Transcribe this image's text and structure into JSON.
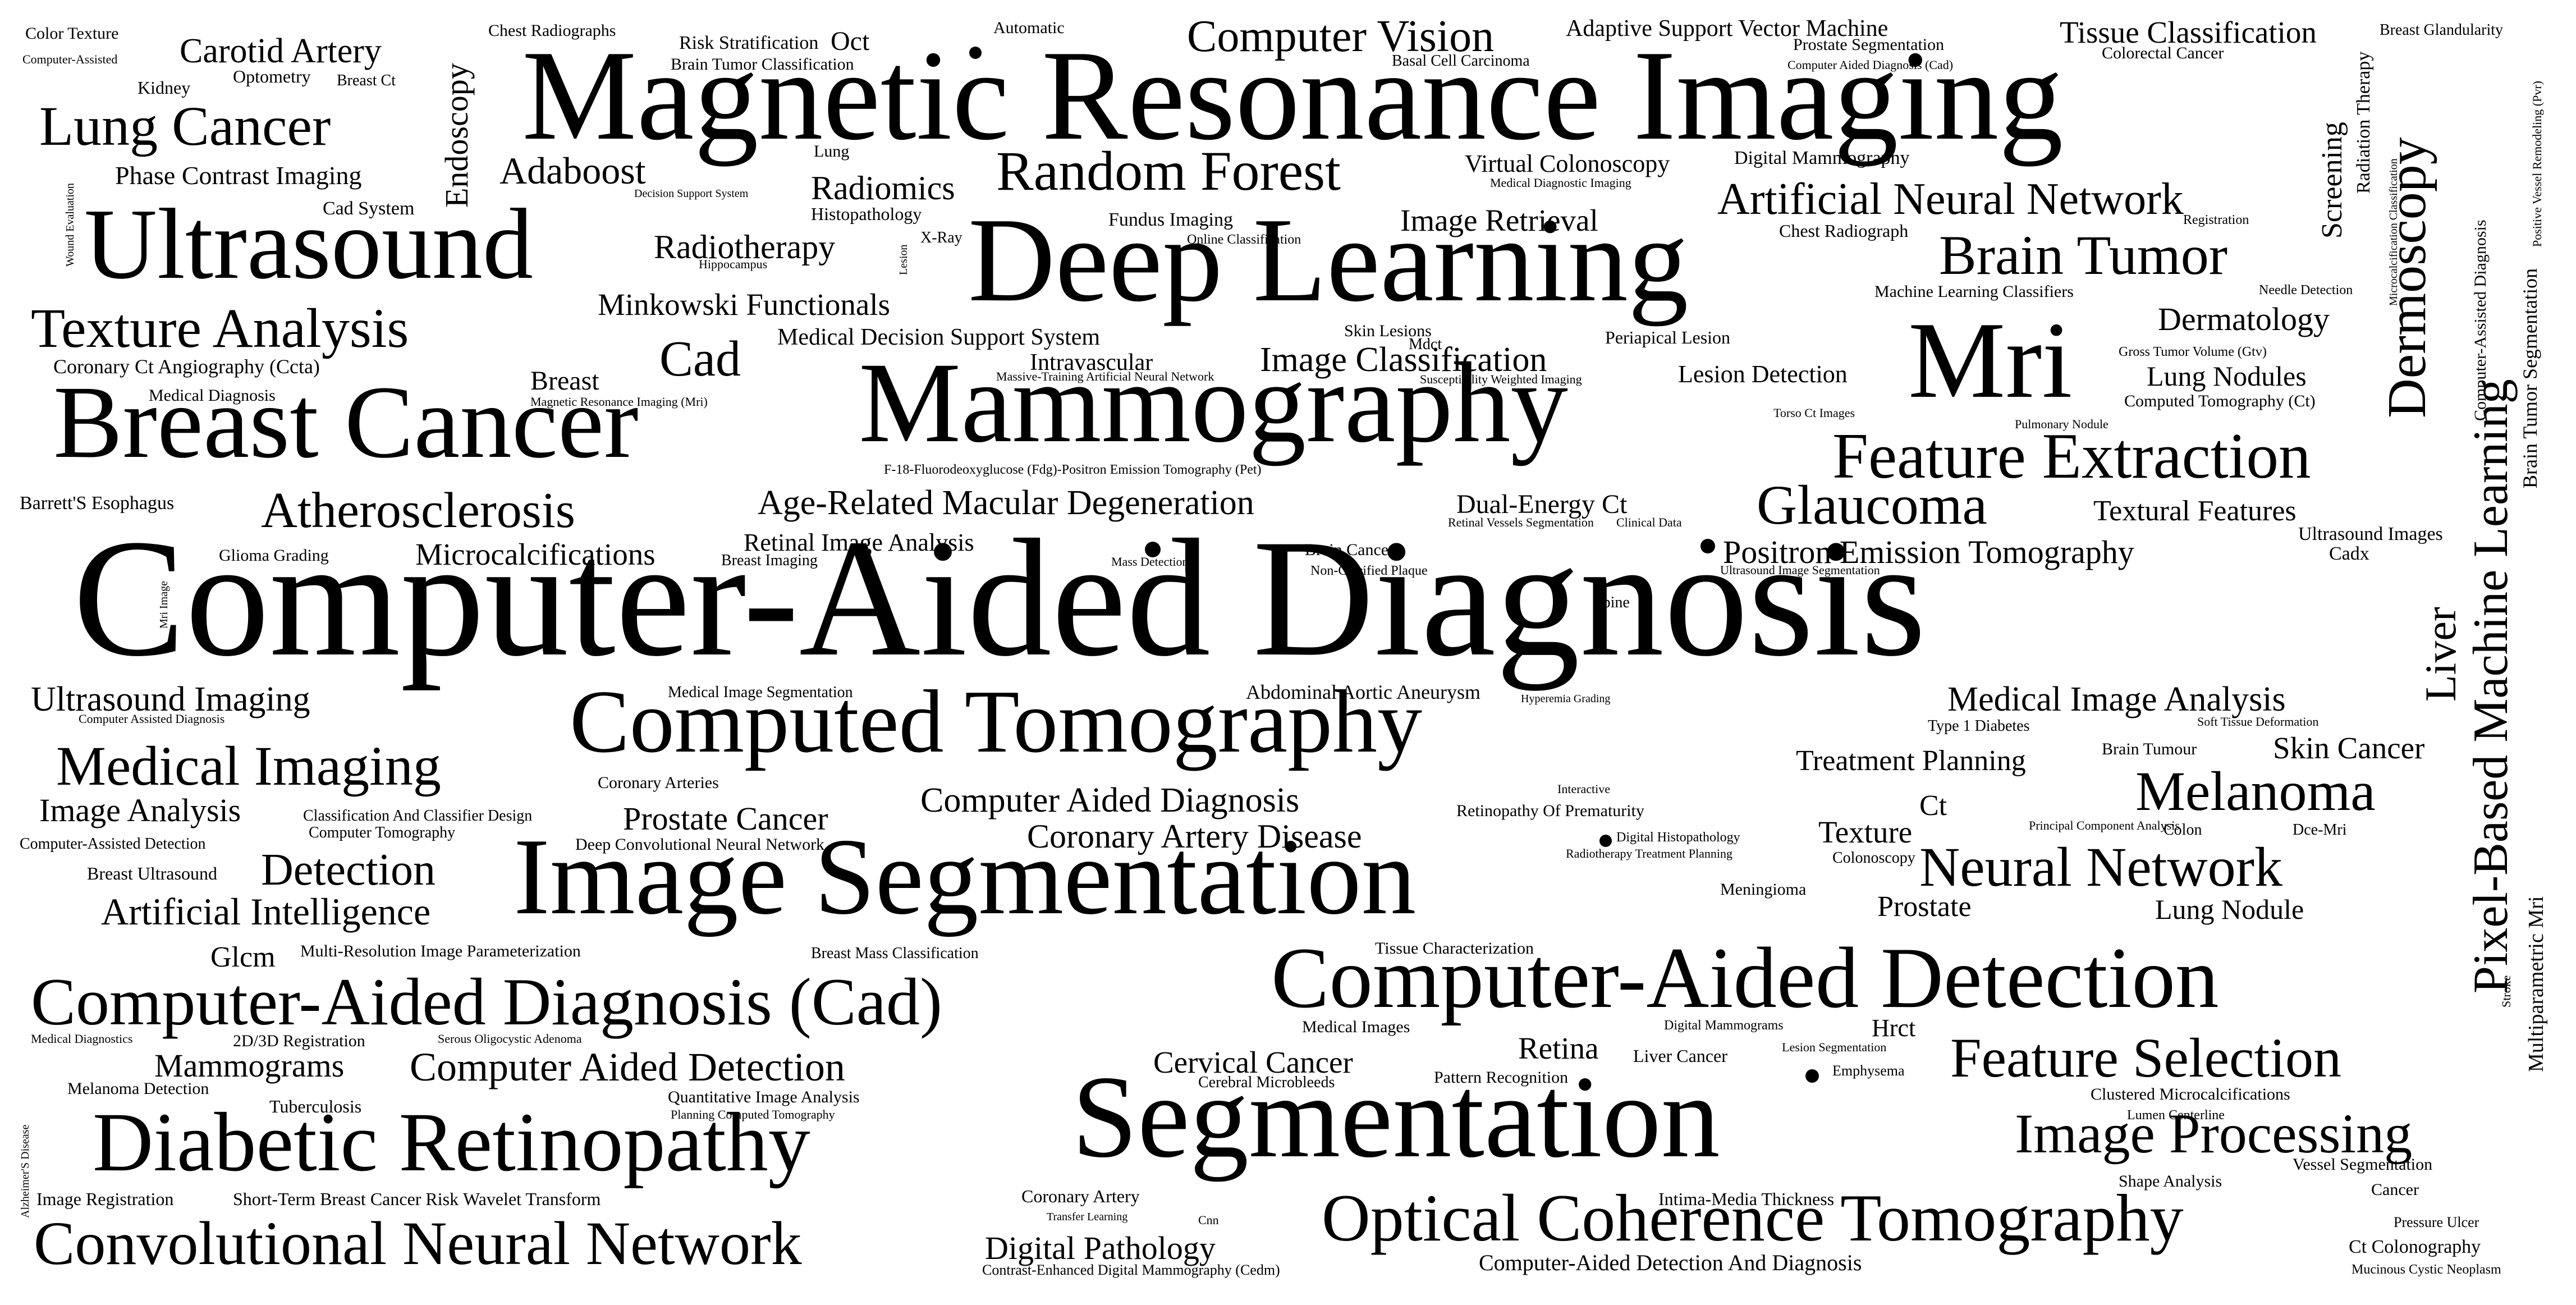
{
  "words": [
    "Computer-Aided Diagnosis",
    "Magnetic Resonance Imaging",
    "Deep Learning",
    "Mammography",
    "Segmentation",
    "Image Segmentation",
    "Breast Cancer",
    "Computed Tomography",
    "Ultrasound",
    "Mri",
    "Computer-Aided Detection",
    "Diabetic Retinopathy",
    "Computer-Aided Diagnosis (Cad)",
    "Convolutional Neural Network",
    "Optical Coherence Tomography",
    "Random Forest",
    "Feature Extraction",
    "Brain Tumor",
    "Lung Cancer",
    "Medical Imaging",
    "Texture Analysis",
    "Artificial Neural Network",
    "Computer Vision",
    "Glaucoma",
    "Neural Network",
    "Melanoma",
    "Image Processing",
    "Feature Selection",
    "Atherosclerosis",
    "Detection",
    "Cad",
    "Ultrasound Imaging",
    "Dermoscopy",
    "Pixel-Based Machine Learning",
    "Age-Related Macular Degeneration",
    "Computer Aided Detection",
    "Computer Aided Diagnosis",
    "Coronary Artery Disease",
    "Artificial Intelligence",
    "Adaboost",
    "Radiomics",
    "Radiotherapy",
    "Minkowski Functionals",
    "Image Classification",
    "Image Retrieval",
    "Digital Pathology",
    "Mammograms",
    "Image Analysis",
    "Prostate Cancer",
    "Carotid Artery",
    "Phase Contrast Imaging",
    "Microcalcifications",
    "Medical Image Analysis",
    "Positron Emission Tomography",
    "Treatment Planning",
    "Skin Cancer",
    "Lung Nodules",
    "Dermatology",
    "Textural Features",
    "Liver",
    "Tissue Classification",
    "Endoscopy",
    "Adaptive Support Vector Machine",
    "Cervical Cancer",
    "Retina",
    "Texture",
    "Ct",
    "Prostate",
    "Lung Nodule",
    "Glcm",
    "Virtual Colonoscopy",
    "Medical Decision Support System",
    "Intravascular",
    "Dual-Energy Ct",
    "Breast",
    "Retinal Image Analysis",
    "Lesion Detection",
    "Screening",
    "Radiation Therapy",
    "Brain Tumor Segmentation",
    "Multiparametric Mri",
    "Oct",
    "Hrct",
    "Color Texture",
    "Computer-Assisted",
    "Kidney",
    "Optometry",
    "Breast Ct",
    "Chest Radiographs",
    "Risk Stratification",
    "Brain Tumor Classification",
    "Automatic",
    "Basal Cell Carcinoma",
    "Prostate Segmentation",
    "Computer Aided Diagnosis (Cad)",
    "Breast Glandularity",
    "Colorectal Cancer",
    "Wound Evaluation",
    "Cad System",
    "Lung",
    "Histopathology",
    "Decision Support System",
    "Medical Diagnostic Imaging",
    "Digital Mammography",
    "Fundus Imaging",
    "Online Classification",
    "X-Ray",
    "Hippocampus",
    "Lesion",
    "Chest Radiograph",
    "Registration",
    "Computer-Assisted Diagnosis",
    "Positive Vessel Remodeling (Pvr)",
    "Microcalcification Classification",
    "Machine Learning Classifiers",
    "Needle Detection",
    "Coronary Ct Angiography (Ccta)",
    "Medical Diagnosis",
    "Skin Lesions",
    "Mdct",
    "Periapical Lesion",
    "Gross Tumor Volume (Gtv)",
    "Massive-Training Artificial Neural Network",
    "Susceptibility Weighted Imaging",
    "Magnetic Resonance Imaging (Mri)",
    "Computed Tomography (Ct)",
    "F-18-Fluorodeoxyglucose (Fdg)-Positron Emission Tomography (Pet)",
    "Torso Ct Images",
    "Pulmonary Nodule",
    "Barrett'S Esophagus",
    "Retinal Vessels Segmentation",
    "Clinical Data",
    "Ultrasound Images",
    "Cadx",
    "Glioma Grading",
    "Breast Imaging",
    "Mri Image",
    "Mass Detection",
    "Brain Cancer",
    "Non-Calcified Plaque",
    "Ultrasound Image Segmentation",
    "Spine",
    "Medical Image Segmentation",
    "Abdominal Aortic Aneurysm",
    "Hyperemia Grading",
    "Computer Assisted Diagnosis",
    "Type 1 Diabetes",
    "Soft Tissue Deformation",
    "Brain Tumour",
    "Coronary Arteries",
    "Interactive",
    "Retinopathy Of Prematurity",
    "Classification And Classifier Design",
    "Computer Tomography",
    "Digital Histopathology",
    "Radiotherapy Treatment Planning",
    "Principal Component Analysis",
    "Colon",
    "Dce-Mri",
    "Computer-Assisted Detection",
    "Deep Convolutional Neural Network",
    "Colonoscopy",
    "Breast Ultrasound",
    "Meningioma",
    "Multi-Resolution Image Parameterization",
    "Breast Mass Classification",
    "Tissue Characterization",
    "Stroke",
    "Medical Diagnostics",
    "2D/3D Registration",
    "Serous Oligocystic Adenoma",
    "Medical Images",
    "Digital Mammograms",
    "Melanoma Detection",
    "Tuberculosis",
    "Quantitative Image Analysis",
    "Planning Computed Tomography",
    "Cerebral Microbleeds",
    "Pattern Recognition",
    "Liver Cancer",
    "Lesion Segmentation",
    "Emphysema",
    "Clustered Microcalcifications",
    "Lumen Centerline",
    "Alzheimer'S Disease",
    "Image Registration",
    "Short-Term Breast Cancer Risk",
    "Wavelet Transform",
    "Coronary Artery",
    "Transfer Learning",
    "Cnn",
    "Intima-Media Thickness",
    "Shape Analysis",
    "Vessel Segmentation",
    "Cancer",
    "Pressure Ulcer",
    "Ct Colonography",
    "Contrast-Enhanced Digital Mammography (Cedm)",
    "Computer-Aided Detection And Diagnosis",
    "Mucinous Cystic Neoplasm"
  ]
}
